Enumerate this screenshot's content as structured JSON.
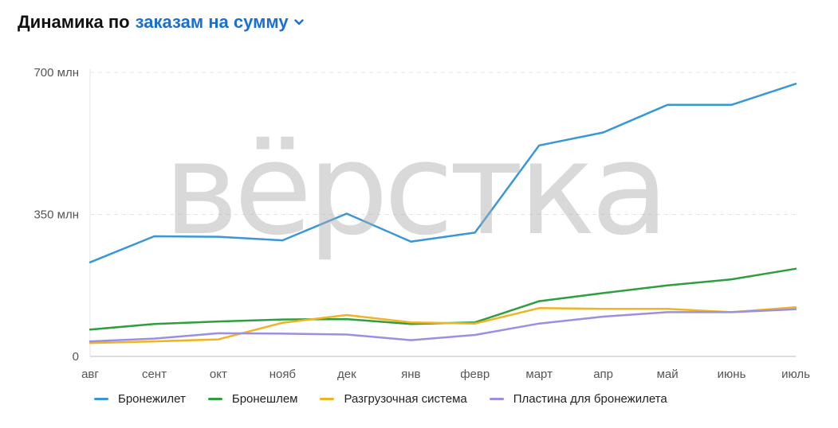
{
  "header": {
    "prefix": "Динамика по",
    "metric": "заказам на сумму",
    "chevron_icon": "chevron-down-icon"
  },
  "watermark": "вёрстка",
  "colors": {
    "accent": "#1a6fd6",
    "grid": "#e3e3e3",
    "axis": "#bdbdbd"
  },
  "chart_data": {
    "type": "line",
    "title": "",
    "xlabel": "",
    "ylabel": "",
    "categories": [
      "авг",
      "сент",
      "окт",
      "нояб",
      "дек",
      "янв",
      "февр",
      "март",
      "апр",
      "май",
      "июнь",
      "июль"
    ],
    "y_ticks": [
      {
        "value": 0,
        "label": "0"
      },
      {
        "value": 350,
        "label": "350 млн"
      },
      {
        "value": 700,
        "label": "700 млн"
      }
    ],
    "ylim": [
      0,
      700
    ],
    "grid": true,
    "legend_position": "bottom-left",
    "series": [
      {
        "name": "Бронежилет",
        "color": "#3a97d6",
        "values": [
          232,
          296,
          295,
          286,
          352,
          283,
          305,
          520,
          552,
          620,
          620,
          672
        ]
      },
      {
        "name": "Бронешлем",
        "color": "#2e9e3e",
        "values": [
          66,
          80,
          86,
          91,
          92,
          80,
          84,
          136,
          156,
          175,
          190,
          216
        ]
      },
      {
        "name": "Разгрузочная система",
        "color": "#f0b322",
        "values": [
          33,
          37,
          42,
          83,
          102,
          84,
          81,
          119,
          117,
          117,
          109,
          121
        ]
      },
      {
        "name": "Пластина для бронежилета",
        "color": "#9b8fe0",
        "values": [
          37,
          44,
          57,
          56,
          54,
          40,
          53,
          81,
          98,
          109,
          109,
          116
        ]
      }
    ]
  }
}
